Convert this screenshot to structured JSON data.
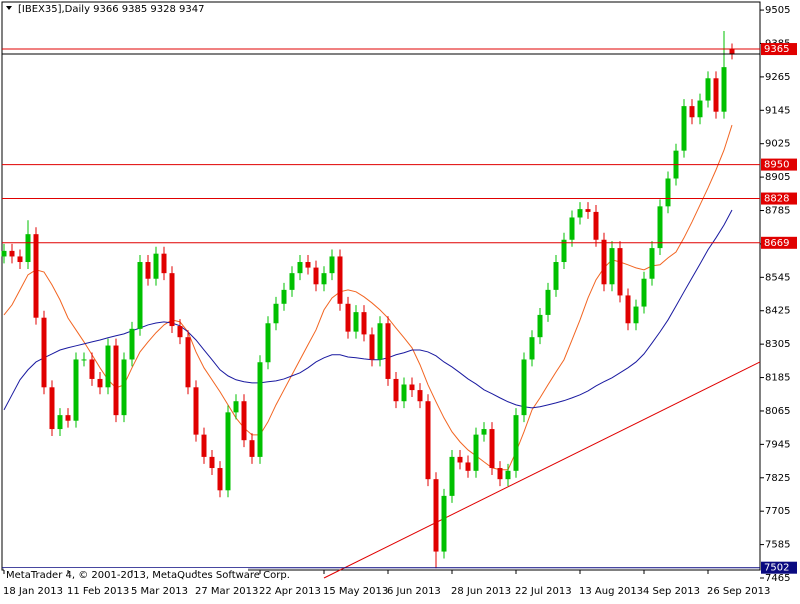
{
  "chart_data": {
    "type": "candlestick",
    "title": "[IBEX35],Daily  9366 9385 9328 9347",
    "credit": "MetaTrader 4, © 2001-2013, MetaQuotes Software Corp.",
    "categories": [
      "18 Jan 2013",
      null,
      null,
      null,
      null,
      null,
      null,
      null,
      "11 Feb 2013",
      null,
      null,
      null,
      null,
      null,
      null,
      null,
      "5 Mar 2013",
      null,
      null,
      null,
      null,
      null,
      null,
      null,
      "27 Mar 2013",
      null,
      null,
      null,
      null,
      null,
      null,
      null,
      "22 Apr 2013",
      null,
      null,
      null,
      null,
      null,
      null,
      null,
      "15 May 2013",
      null,
      null,
      null,
      null,
      null,
      null,
      null,
      "6 Jun 2013",
      null,
      null,
      null,
      null,
      null,
      null,
      null,
      "28 Jun 2013",
      null,
      null,
      null,
      null,
      null,
      null,
      null,
      "22 Jul 2013",
      null,
      null,
      null,
      null,
      null,
      null,
      null,
      "13 Aug 2013",
      null,
      null,
      null,
      null,
      null,
      null,
      null,
      "4 Sep 2013",
      null,
      null,
      null,
      null,
      null,
      null,
      null,
      "26 Sep 2013",
      null,
      null,
      null
    ],
    "open": [
      8620,
      8640,
      8620,
      8600,
      8700,
      8400,
      8150,
      8000,
      8050,
      8030,
      8250,
      8250,
      8180,
      8150,
      8300,
      8050,
      8250,
      8360,
      8600,
      8540,
      8630,
      8560,
      8370,
      8330,
      8150,
      7980,
      7900,
      7860,
      7780,
      8060,
      8100,
      7960,
      7900,
      8240,
      8380,
      8450,
      8500,
      8560,
      8600,
      8580,
      8520,
      8560,
      8620,
      8450,
      8350,
      8420,
      8340,
      8250,
      8380,
      8180,
      8100,
      8160,
      8140,
      8100,
      7820,
      7560,
      7760,
      7900,
      7880,
      7850,
      7980,
      8000,
      7860,
      7820,
      7850,
      8050,
      8250,
      8330,
      8410,
      8500,
      8600,
      8680,
      8760,
      8790,
      8780,
      8680,
      8520,
      8650,
      8480,
      8380,
      8440,
      8540,
      8650,
      8800,
      8900,
      9000,
      9160,
      9120,
      9180,
      9260,
      9140,
      9366
    ],
    "high": [
      8665,
      8665,
      8645,
      8750,
      8725,
      8425,
      8175,
      8075,
      8075,
      8275,
      8275,
      8275,
      8205,
      8325,
      8325,
      8275,
      8385,
      8625,
      8625,
      8655,
      8655,
      8585,
      8395,
      8355,
      8175,
      8005,
      7925,
      7885,
      8085,
      8125,
      8125,
      7985,
      8265,
      8405,
      8475,
      8525,
      8585,
      8625,
      8625,
      8605,
      8585,
      8645,
      8645,
      8475,
      8445,
      8445,
      8365,
      8405,
      8405,
      8205,
      8185,
      8185,
      8165,
      8125,
      7845,
      7785,
      7925,
      7925,
      7905,
      8005,
      8025,
      8025,
      7885,
      7875,
      8075,
      8275,
      8355,
      8435,
      8525,
      8625,
      8705,
      8785,
      8815,
      8815,
      8805,
      8705,
      8675,
      8675,
      8505,
      8465,
      8565,
      8675,
      8825,
      8925,
      9025,
      9185,
      9185,
      9205,
      9285,
      9285,
      9430,
      9385
    ],
    "low": [
      8595,
      8595,
      8575,
      8575,
      8375,
      8125,
      7975,
      7975,
      8005,
      8005,
      8225,
      8155,
      8125,
      8125,
      8025,
      8025,
      8225,
      8335,
      8515,
      8515,
      8535,
      8345,
      8305,
      8125,
      7955,
      7875,
      7835,
      7755,
      7755,
      8035,
      7935,
      7875,
      7875,
      8215,
      8355,
      8425,
      8475,
      8535,
      8555,
      8495,
      8495,
      8535,
      8425,
      8325,
      8325,
      8315,
      8225,
      8225,
      8155,
      8075,
      8075,
      8115,
      8075,
      7795,
      7500,
      7535,
      7735,
      7855,
      7825,
      7825,
      7955,
      7835,
      7795,
      7795,
      7825,
      8025,
      8225,
      8305,
      8385,
      8475,
      8575,
      8655,
      8735,
      8755,
      8655,
      8495,
      8495,
      8455,
      8355,
      8355,
      8415,
      8515,
      8625,
      8775,
      8875,
      8975,
      9095,
      9095,
      9155,
      9115,
      9115,
      9328
    ],
    "close": [
      8640,
      8620,
      8600,
      8700,
      8400,
      8150,
      8000,
      8050,
      8030,
      8250,
      8250,
      8180,
      8150,
      8300,
      8050,
      8250,
      8360,
      8600,
      8540,
      8630,
      8560,
      8370,
      8330,
      8150,
      7980,
      7900,
      7860,
      7780,
      8060,
      8100,
      7960,
      7900,
      8240,
      8380,
      8450,
      8500,
      8560,
      8600,
      8580,
      8520,
      8560,
      8620,
      8450,
      8350,
      8420,
      8340,
      8250,
      8380,
      8180,
      8100,
      8160,
      8140,
      8100,
      7820,
      7560,
      7760,
      7900,
      7880,
      7850,
      7980,
      8000,
      7860,
      7820,
      7850,
      8050,
      8250,
      8330,
      8410,
      8500,
      8600,
      8680,
      8760,
      8790,
      8780,
      8680,
      8520,
      8650,
      8480,
      8380,
      8440,
      8540,
      8650,
      8800,
      8900,
      9000,
      9160,
      9120,
      9180,
      9260,
      9140,
      9300,
      9347
    ],
    "up_color": "#00c000",
    "down_color": "#e00000",
    "series": [
      {
        "color": "#f26522",
        "values": [
          8410,
          8446,
          8500,
          8554,
          8572,
          8564,
          8518,
          8464,
          8399,
          8356,
          8313,
          8267,
          8220,
          8177,
          8148,
          8159,
          8220,
          8277,
          8313,
          8346,
          8374,
          8392,
          8385,
          8349,
          8277,
          8220,
          8177,
          8134,
          8087,
          8040,
          8004,
          7979,
          7979,
          8026,
          8087,
          8141,
          8195,
          8249,
          8303,
          8356,
          8428,
          8471,
          8493,
          8500,
          8493,
          8475,
          8453,
          8428,
          8399,
          8363,
          8328,
          8292,
          8231,
          8159,
          8098,
          8040,
          7990,
          7954,
          7925,
          7904,
          7882,
          7861,
          7854,
          7854,
          7918,
          7990,
          8069,
          8112,
          8159,
          8205,
          8249,
          8320,
          8392,
          8471,
          8536,
          8579,
          8608,
          8600,
          8590,
          8579,
          8572,
          8586,
          8590,
          8615,
          8636,
          8687,
          8744,
          8805,
          8866,
          8931,
          9002,
          9092
        ]
      },
      {
        "color": "#1a1aa0",
        "values": [
          8069,
          8123,
          8177,
          8213,
          8241,
          8256,
          8270,
          8284,
          8292,
          8299,
          8306,
          8313,
          8320,
          8328,
          8335,
          8342,
          8353,
          8363,
          8374,
          8381,
          8385,
          8381,
          8371,
          8349,
          8320,
          8284,
          8249,
          8213,
          8191,
          8177,
          8170,
          8166,
          8166,
          8170,
          8173,
          8180,
          8191,
          8202,
          8220,
          8241,
          8256,
          8267,
          8267,
          8259,
          8256,
          8252,
          8249,
          8249,
          8256,
          8267,
          8274,
          8284,
          8284,
          8277,
          8263,
          8241,
          8223,
          8202,
          8180,
          8162,
          8141,
          8127,
          8112,
          8098,
          8087,
          8080,
          8076,
          8080,
          8087,
          8094,
          8102,
          8112,
          8123,
          8137,
          8155,
          8170,
          8184,
          8202,
          8220,
          8241,
          8270,
          8309,
          8349,
          8392,
          8442,
          8493,
          8543,
          8593,
          8644,
          8687,
          8733,
          8787
        ]
      }
    ],
    "hlines": [
      {
        "value": 9365,
        "color": "#e00000",
        "boxed": true
      },
      {
        "value": 9347,
        "color": "#000000",
        "boxed": false
      },
      {
        "value": 8950,
        "color": "#e00000",
        "boxed": true
      },
      {
        "value": 8828,
        "color": "#e00000",
        "boxed": true
      },
      {
        "value": 8669,
        "color": "#e00000",
        "boxed": true
      },
      {
        "value": 7502,
        "color": "#0a0a80",
        "boxed": true
      }
    ],
    "trendline": {
      "values": [
        7465,
        8241
      ],
      "color": "#e00000"
    },
    "ylim": [
      7465,
      9534
    ],
    "yticks": [
      9505,
      9385,
      9265,
      9145,
      9025,
      8905,
      8785,
      8665,
      8545,
      8425,
      8305,
      8185,
      8065,
      7945,
      7825,
      7705,
      7585,
      7465
    ]
  }
}
